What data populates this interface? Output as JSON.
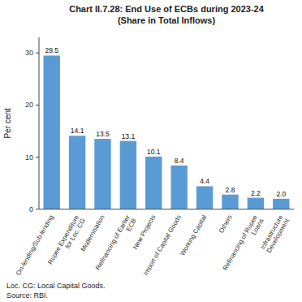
{
  "chart_data": {
    "type": "bar",
    "title": "Chart II.7.28: End Use of ECBs during 2023-24\n(Share in Total Inflows)",
    "categories": [
      "On-lending/Sub-lending",
      "Rupee Expenditure\nfor Loc. CG",
      "Modernisation",
      "Refinancing of Earlier\nECB",
      "New Projects",
      "Import of Capital Goods",
      "Working Capital",
      "Others",
      "Refinancing of Rupee\nLoans",
      "Infrastructure\nDevelopment"
    ],
    "values": [
      29.5,
      14.1,
      13.5,
      13.1,
      10.1,
      8.4,
      4.4,
      2.8,
      2.2,
      2.0
    ],
    "value_labels": [
      "29.5",
      "14.1",
      "13.5",
      "13.1",
      "10.1",
      "8.4",
      "4.4",
      "2.8",
      "2.2",
      "2.0"
    ],
    "color": "#5B9BD5",
    "ylabel": "Per cent",
    "ylim": [
      0,
      33
    ],
    "yticks": [
      0,
      10,
      20,
      30
    ],
    "grid": false,
    "data_labels": true,
    "annotations": [
      "Loc. CG: Local Capital Goods.",
      "Source: RBI."
    ]
  }
}
